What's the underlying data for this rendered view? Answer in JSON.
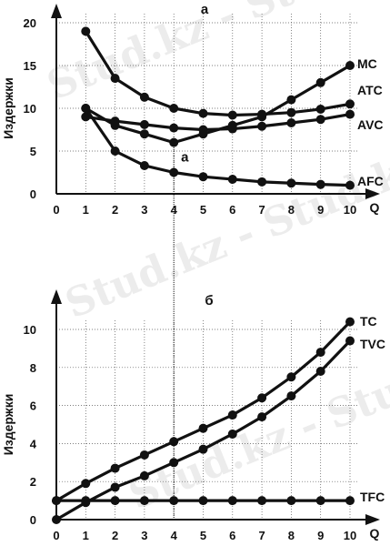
{
  "watermark": "Stud.kz - Stud.kz",
  "chart_data": [
    {
      "type": "line",
      "title": "а",
      "ylabel": "Издержки",
      "xlabel": "Q",
      "xlim": [
        0,
        10
      ],
      "ylim": [
        0,
        20
      ],
      "xticks": [
        "0",
        "1",
        "2",
        "3",
        "4",
        "5",
        "6",
        "7",
        "8",
        "9",
        "10"
      ],
      "yticks": [
        "0",
        "5",
        "10",
        "15",
        "20"
      ],
      "grid": true,
      "annotation": {
        "text": "а",
        "x": 4.5,
        "y": 3.8
      },
      "x": [
        1,
        2,
        3,
        4,
        5,
        6,
        7,
        8,
        9,
        10
      ],
      "series": [
        {
          "name": "MC",
          "values": [
            10,
            8,
            7,
            6,
            7,
            8,
            9,
            11,
            13,
            15
          ]
        },
        {
          "name": "ATC",
          "values": [
            19,
            13.5,
            11.3,
            10,
            9.4,
            9.2,
            9.3,
            9.5,
            9.9,
            10.5
          ]
        },
        {
          "name": "AVC",
          "values": [
            9,
            8.5,
            8.1,
            7.7,
            7.5,
            7.6,
            7.9,
            8.3,
            8.7,
            9.3
          ]
        },
        {
          "name": "AFC",
          "values": [
            10,
            5,
            3.3,
            2.5,
            2,
            1.7,
            1.4,
            1.25,
            1.1,
            1
          ]
        }
      ]
    },
    {
      "type": "line",
      "title": "б",
      "ylabel": "Издержки",
      "xlabel": "Q",
      "xlim": [
        0,
        10
      ],
      "ylim": [
        0,
        10
      ],
      "xticks": [
        "0",
        "1",
        "2",
        "3",
        "4",
        "5",
        "6",
        "7",
        "8",
        "9",
        "10"
      ],
      "yticks": [
        "0",
        "2",
        "4",
        "6",
        "8",
        "10"
      ],
      "grid": true,
      "x": [
        0,
        1,
        2,
        3,
        4,
        5,
        6,
        7,
        8,
        9,
        10
      ],
      "series": [
        {
          "name": "TC",
          "values": [
            1,
            1.9,
            2.7,
            3.4,
            4.1,
            4.8,
            5.5,
            6.4,
            7.5,
            8.8,
            10.4
          ]
        },
        {
          "name": "TVC",
          "values": [
            0,
            0.9,
            1.7,
            2.3,
            3.0,
            3.7,
            4.5,
            5.4,
            6.5,
            7.8,
            9.4
          ]
        },
        {
          "name": "TFC",
          "values": [
            1,
            1,
            1,
            1,
            1,
            1,
            1,
            1,
            1,
            1,
            1
          ]
        }
      ]
    }
  ]
}
